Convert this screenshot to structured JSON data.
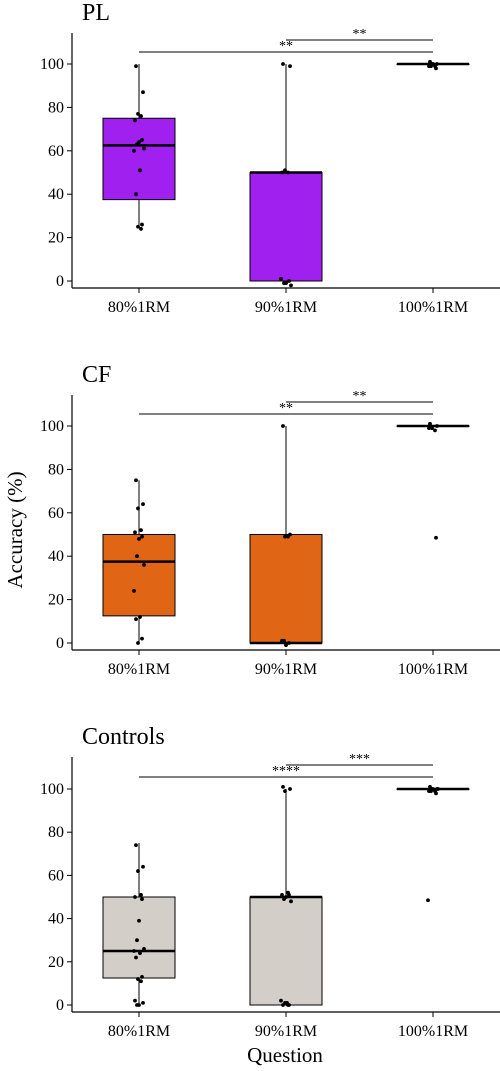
{
  "figure": {
    "xlabel": "Question",
    "ylabel": "Accuracy (%)"
  },
  "chart_data": [
    {
      "type": "box",
      "title": "PL",
      "categories": [
        "80%1RM",
        "90%1RM",
        "100%1RM"
      ],
      "ylim": [
        0,
        100
      ],
      "yticks": [
        0,
        20,
        40,
        60,
        80,
        100
      ],
      "fill": "#a020f0",
      "boxes": [
        {
          "category": "80%1RM",
          "min": 25,
          "q1": 37.5,
          "median": 62.5,
          "q3": 75,
          "max": 100,
          "points": [
            99,
            87,
            77,
            76,
            74,
            65,
            64,
            63,
            61,
            60,
            51,
            40,
            26,
            25,
            24
          ]
        },
        {
          "category": "90%1RM",
          "min": 0,
          "q1": 0,
          "median": 50,
          "q3": 50,
          "max": 100,
          "points": [
            100,
            99,
            51,
            50,
            50,
            0,
            -1,
            -1,
            -2,
            1
          ]
        },
        {
          "category": "100%1RM",
          "min": 100,
          "q1": 100,
          "median": 100,
          "q3": 100,
          "max": 100,
          "points": [
            101,
            100,
            100,
            99,
            99,
            98,
            100,
            99
          ]
        }
      ],
      "comparisons": [
        {
          "from": "80%1RM",
          "to": "100%1RM",
          "label": "**"
        },
        {
          "from": "90%1RM",
          "to": "100%1RM",
          "label": "**"
        }
      ]
    },
    {
      "type": "box",
      "title": "CF",
      "categories": [
        "80%1RM",
        "90%1RM",
        "100%1RM"
      ],
      "ylim": [
        0,
        100
      ],
      "yticks": [
        0,
        20,
        40,
        60,
        80,
        100
      ],
      "fill": "#e06515",
      "boxes": [
        {
          "category": "80%1RM",
          "min": 0,
          "q1": 12.5,
          "median": 37.5,
          "q3": 50,
          "max": 75,
          "points": [
            75,
            64,
            62,
            52,
            51,
            49,
            48,
            40,
            36,
            24,
            12,
            11,
            2,
            0
          ]
        },
        {
          "category": "90%1RM",
          "min": 0,
          "q1": 0,
          "median": 0,
          "q3": 50,
          "max": 100,
          "points": [
            100,
            50,
            49,
            49,
            1,
            0,
            -1,
            1
          ]
        },
        {
          "category": "100%1RM",
          "min": 100,
          "q1": 100,
          "median": 100,
          "q3": 100,
          "max": 100,
          "points": [
            101,
            100,
            99,
            98,
            99,
            48.5
          ]
        }
      ],
      "comparisons": [
        {
          "from": "80%1RM",
          "to": "100%1RM",
          "label": "**"
        },
        {
          "from": "90%1RM",
          "to": "100%1RM",
          "label": "**"
        }
      ]
    },
    {
      "type": "box",
      "title": "Controls",
      "categories": [
        "80%1RM",
        "90%1RM",
        "100%1RM"
      ],
      "ylim": [
        0,
        100
      ],
      "yticks": [
        0,
        20,
        40,
        60,
        80,
        100
      ],
      "fill": "#d3cec8",
      "boxes": [
        {
          "category": "80%1RM",
          "min": 0,
          "q1": 12.5,
          "median": 25,
          "q3": 50,
          "max": 75,
          "points": [
            74,
            64,
            62,
            51,
            50,
            49,
            39,
            30,
            26,
            25,
            24,
            22,
            13,
            12,
            11,
            2,
            1,
            0,
            0
          ]
        },
        {
          "category": "90%1RM",
          "min": 0,
          "q1": 0,
          "median": 50,
          "q3": 50,
          "max": 100,
          "points": [
            101,
            100,
            99,
            52,
            51,
            51,
            50,
            49,
            48,
            2,
            1,
            0,
            0,
            1,
            0
          ]
        },
        {
          "category": "100%1RM",
          "min": 100,
          "q1": 100,
          "median": 100,
          "q3": 100,
          "max": 100,
          "points": [
            101,
            100,
            100,
            99,
            99,
            98,
            100,
            99,
            100,
            48.5
          ]
        }
      ],
      "comparisons": [
        {
          "from": "80%1RM",
          "to": "100%1RM",
          "label": "****"
        },
        {
          "from": "90%1RM",
          "to": "100%1RM",
          "label": "***"
        }
      ]
    }
  ]
}
